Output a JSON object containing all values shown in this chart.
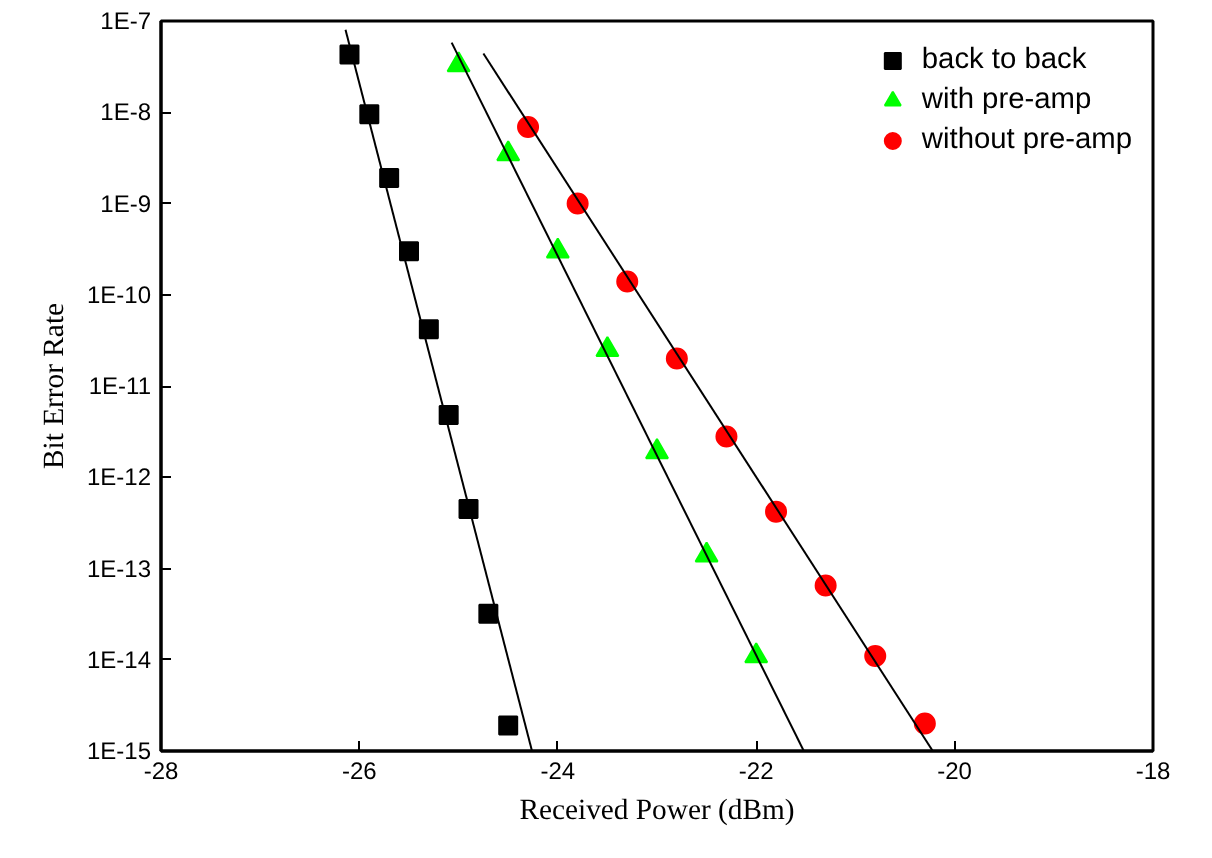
{
  "chart_data": {
    "type": "scatter",
    "xlabel": "Received Power (dBm)",
    "ylabel": "Bit Error Rate",
    "log": "y",
    "xlim": [
      -28,
      -18
    ],
    "xticks": [
      -28,
      -26,
      -24,
      -22,
      -20,
      -18
    ],
    "ylim": [
      1e-15,
      1e-07
    ],
    "yticks": [
      {
        "value": 1e-15,
        "label": "1E-15"
      },
      {
        "value": 1e-14,
        "label": "1E-14"
      },
      {
        "value": 1e-13,
        "label": "1E-13"
      },
      {
        "value": 1e-12,
        "label": "1E-12"
      },
      {
        "value": 1e-11,
        "label": "1E-11"
      },
      {
        "value": 1e-10,
        "label": "1E-10"
      },
      {
        "value": 1e-09,
        "label": "1E-9"
      },
      {
        "value": 1e-08,
        "label": "1E-8"
      },
      {
        "value": 1e-07,
        "label": "1E-7"
      }
    ],
    "grid": false,
    "legend": "top right",
    "series": [
      {
        "name": "back to back",
        "marker": "square",
        "color": "#000000",
        "x": [
          -26.1,
          -25.9,
          -25.7,
          -25.5,
          -25.3,
          -25.1,
          -24.9,
          -24.7,
          -24.5
        ],
        "values": [
          4.3e-08,
          9.5e-09,
          1.9e-09,
          3e-10,
          4.2e-11,
          4.8e-12,
          4.5e-13,
          3.2e-14,
          1.9e-15
        ]
      },
      {
        "name": "with pre-amp",
        "marker": "triangle",
        "color": "#00ff00",
        "x": [
          -25,
          -24.5,
          -24,
          -23.5,
          -23,
          -22.5,
          -22
        ],
        "values": [
          3.3e-08,
          3.5e-09,
          3e-10,
          2.5e-11,
          1.9e-12,
          1.4e-13,
          1.1e-14
        ]
      },
      {
        "name": "without pre-amp",
        "marker": "circle",
        "color": "#ff0000",
        "x": [
          -24.3,
          -23.8,
          -23.3,
          -22.8,
          -22.3,
          -21.8,
          -21.3,
          -20.8,
          -20.3
        ],
        "values": [
          6.9e-09,
          1e-09,
          1.4e-10,
          2e-11,
          2.8e-12,
          4.2e-13,
          6.5e-14,
          1.1e-14,
          2e-15
        ]
      },
      {
        "type": "line",
        "line_style": "solid",
        "color": "#000000",
        "x": [
          -26.14,
          -24.26
        ],
        "values": [
          8e-08,
          1e-15
        ]
      },
      {
        "type": "line",
        "line_style": "solid",
        "color": "#000000",
        "x": [
          -25.07,
          -21.52
        ],
        "values": [
          5.8e-08,
          1e-15
        ]
      },
      {
        "type": "line",
        "line_style": "solid",
        "color": "#000000",
        "x": [
          -24.75,
          -20.22
        ],
        "values": [
          4.4e-08,
          1e-15
        ]
      }
    ]
  }
}
